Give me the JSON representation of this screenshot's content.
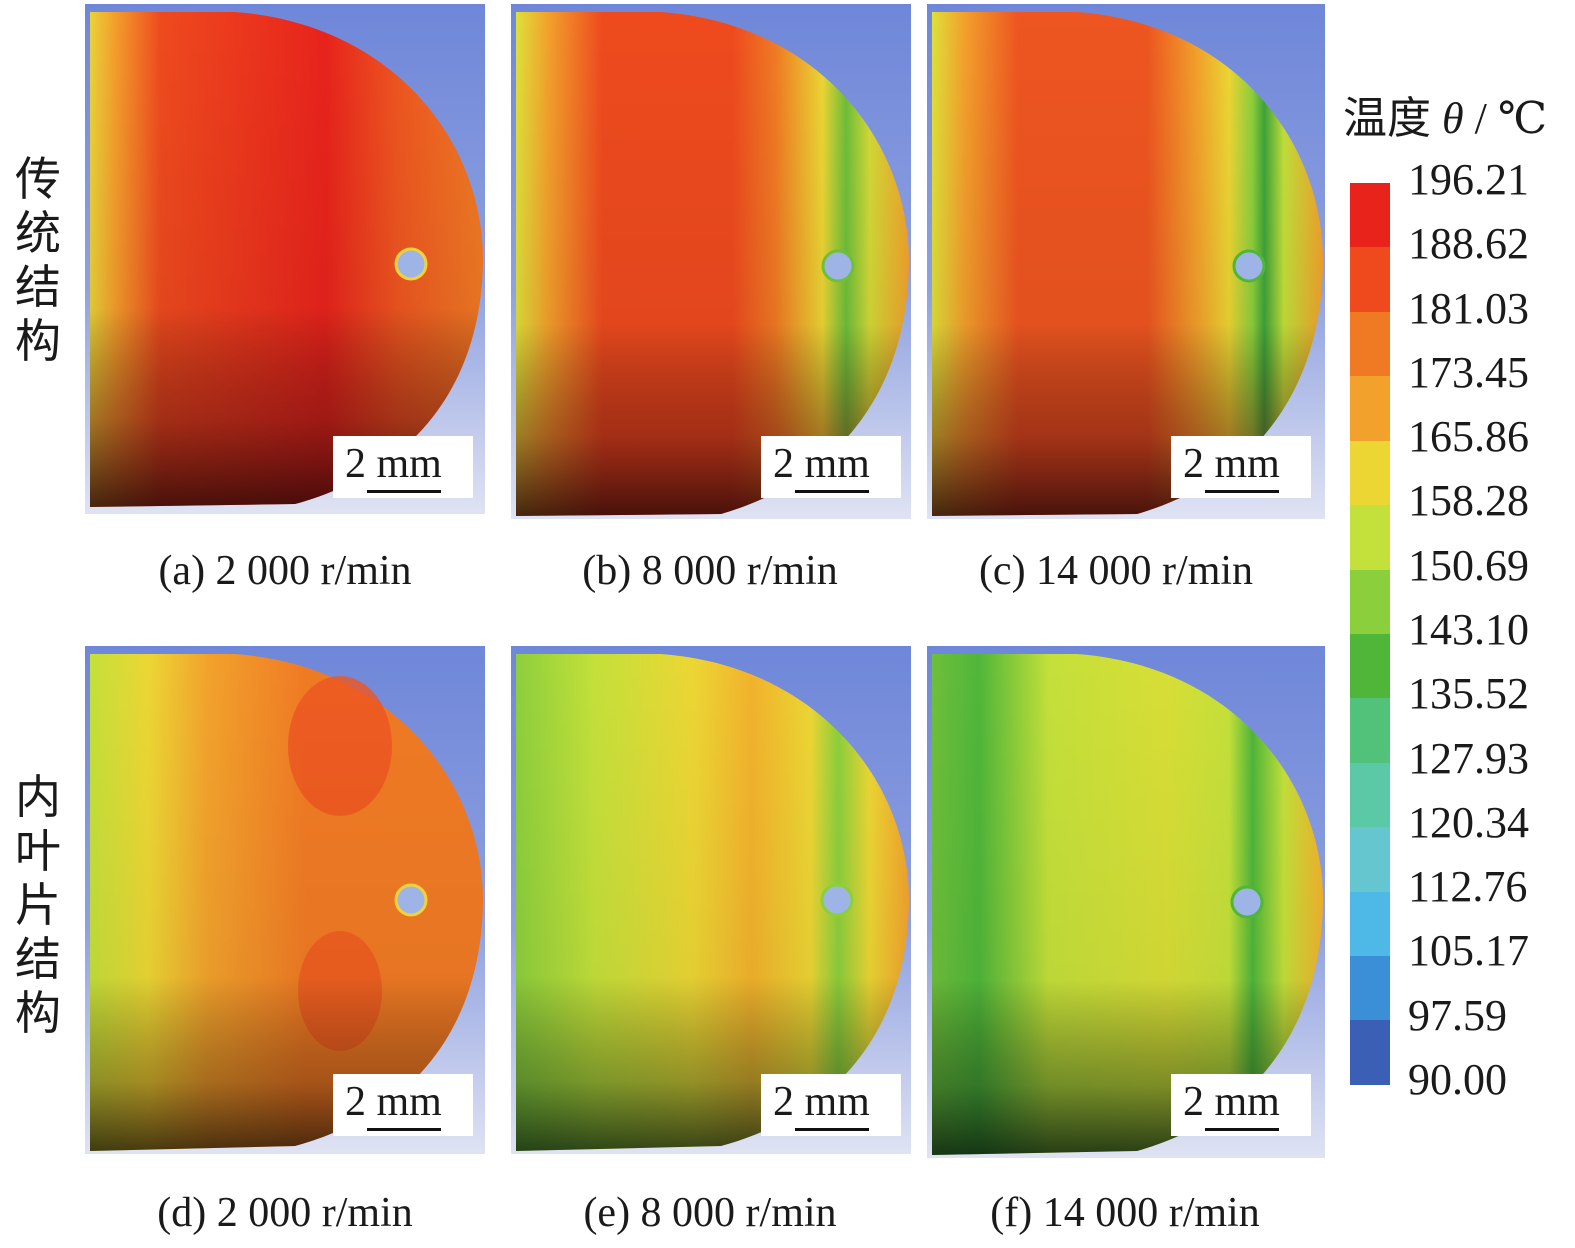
{
  "row_labels": {
    "conventional": [
      "传",
      "统",
      "结",
      "构"
    ],
    "inner_vane": [
      "内",
      "叶",
      "片",
      "结",
      "构"
    ]
  },
  "panels": [
    {
      "caption": "(a) 2 000 r/min",
      "scale": "2 mm",
      "structure": "传统结构",
      "speed_rpm": 2000
    },
    {
      "caption": "(b) 8 000 r/min",
      "scale": "2 mm",
      "structure": "传统结构",
      "speed_rpm": 8000
    },
    {
      "caption": "(c) 14 000 r/min",
      "scale": "2 mm",
      "structure": "传统结构",
      "speed_rpm": 14000
    },
    {
      "caption": "(d) 2 000 r/min",
      "scale": "2 mm",
      "structure": "内叶片结构",
      "speed_rpm": 2000
    },
    {
      "caption": "(e) 8 000 r/min",
      "scale": "2 mm",
      "structure": "内叶片结构",
      "speed_rpm": 8000
    },
    {
      "caption": "(f) 14 000 r/min",
      "scale": "2 mm",
      "structure": "内叶片结构",
      "speed_rpm": 14000
    }
  ],
  "legend": {
    "title_prefix": "温度 ",
    "symbol": "θ",
    "unit": " / ℃",
    "ticks": [
      "196.21",
      "188.62",
      "181.03",
      "173.45",
      "165.86",
      "158.28",
      "150.69",
      "143.10",
      "135.52",
      "127.93",
      "120.34",
      "112.76",
      "105.17",
      "97.59",
      "90.00"
    ],
    "colors": [
      "#e8231c",
      "#ee4a1e",
      "#f07a24",
      "#f2a22c",
      "#ecd634",
      "#c4e03a",
      "#8ccf3c",
      "#4fb63a",
      "#52c27a",
      "#5cc9a6",
      "#66c6cf",
      "#4eb8e6",
      "#3b8fd6",
      "#3a5fb4"
    ]
  }
}
